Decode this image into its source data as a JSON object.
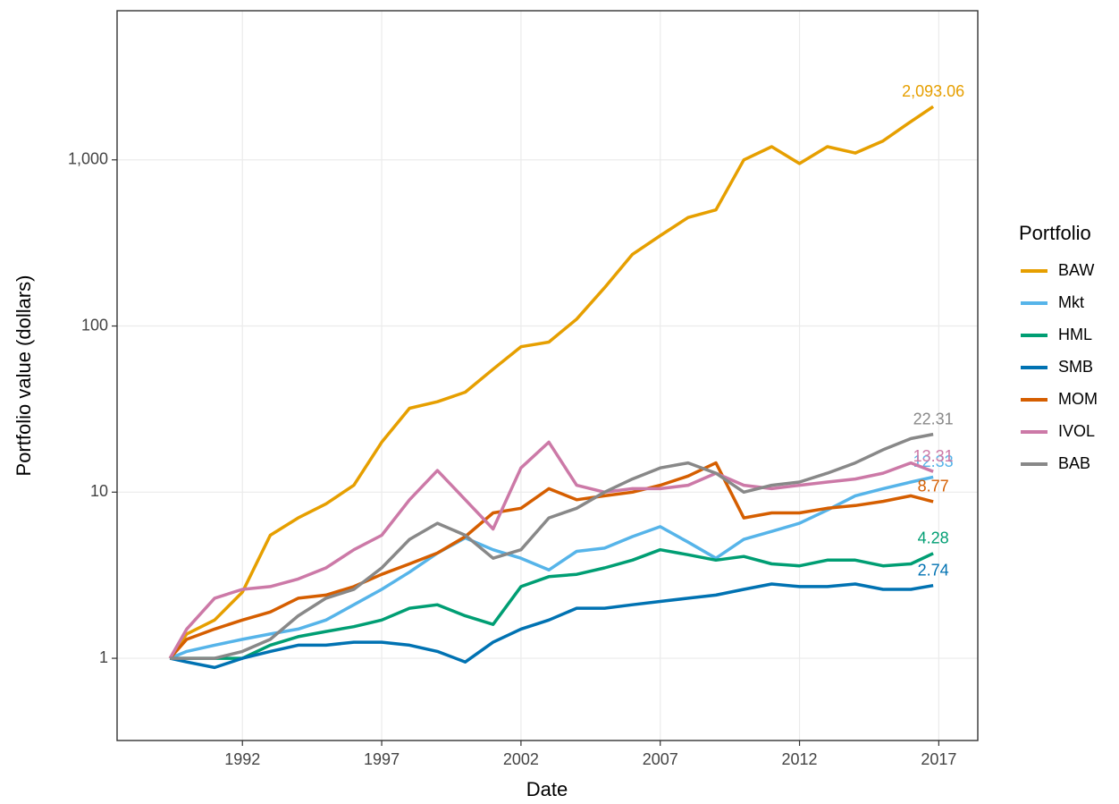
{
  "chart_data": {
    "type": "line",
    "log_y": true,
    "grid": true,
    "x_label": "Date",
    "y_label": "Portfolio value (dollars)",
    "legend_title": "Portfolio",
    "legend_position": "right",
    "xlim": [
      1987.5,
      2018.4
    ],
    "xticks": [
      1992,
      1997,
      2002,
      2007,
      2012,
      2017
    ],
    "ylim": [
      0.32,
      7900
    ],
    "yticks": [
      1,
      10,
      100,
      {
        "value": 1000,
        "label": "1,000"
      }
    ],
    "x": [
      1989.4,
      1990,
      1991,
      1992,
      1993,
      1994,
      1995,
      1996,
      1997,
      1998,
      1999,
      2000,
      2001,
      2002,
      2003,
      2004,
      2005,
      2006,
      2007,
      2008,
      2009,
      2010,
      2011,
      2012,
      2013,
      2014,
      2015,
      2016,
      2016.8
    ],
    "series": [
      {
        "name": "BAW",
        "color": "#E69F00",
        "values": [
          1,
          1.4,
          1.7,
          2.5,
          5.5,
          7,
          8.5,
          11,
          20,
          32,
          35,
          40,
          55,
          75,
          80,
          110,
          170,
          270,
          350,
          450,
          500,
          1000,
          1200,
          950,
          1200,
          1100,
          1300,
          1700,
          2093.06
        ],
        "value_labels": [
          null,
          null,
          null,
          null,
          null,
          null,
          null,
          null,
          null,
          null,
          null,
          null,
          null,
          null,
          null,
          null,
          null,
          null,
          null,
          null,
          null,
          null,
          null,
          null,
          null,
          null,
          null,
          null,
          "2,093.06"
        ]
      },
      {
        "name": "Mkt",
        "color": "#56B4E9",
        "values": [
          1,
          1.1,
          1.2,
          1.3,
          1.4,
          1.5,
          1.7,
          2.1,
          2.6,
          3.3,
          4.3,
          5.3,
          4.5,
          4.0,
          3.4,
          4.4,
          4.6,
          5.4,
          6.2,
          5.0,
          4.0,
          5.2,
          5.8,
          6.5,
          7.8,
          9.5,
          10.5,
          11.5,
          12.33
        ],
        "value_labels": [
          null,
          null,
          null,
          null,
          null,
          null,
          null,
          null,
          null,
          null,
          null,
          null,
          null,
          null,
          null,
          null,
          null,
          null,
          null,
          null,
          null,
          null,
          null,
          null,
          null,
          null,
          null,
          null,
          "12.33"
        ]
      },
      {
        "name": "HML",
        "color": "#009E73",
        "values": [
          1,
          1.0,
          1.0,
          1.0,
          1.2,
          1.35,
          1.45,
          1.55,
          1.7,
          2.0,
          2.1,
          1.8,
          1.6,
          2.7,
          3.1,
          3.2,
          3.5,
          3.9,
          4.5,
          4.2,
          3.9,
          4.1,
          3.7,
          3.6,
          3.9,
          3.9,
          3.6,
          3.7,
          4.28
        ],
        "value_labels": [
          null,
          null,
          null,
          null,
          null,
          null,
          null,
          null,
          null,
          null,
          null,
          null,
          null,
          null,
          null,
          null,
          null,
          null,
          null,
          null,
          null,
          null,
          null,
          null,
          null,
          null,
          null,
          null,
          "4.28"
        ]
      },
      {
        "name": "SMB",
        "color": "#0072B2",
        "values": [
          1,
          0.95,
          0.88,
          1.0,
          1.1,
          1.2,
          1.2,
          1.25,
          1.25,
          1.2,
          1.1,
          0.95,
          1.25,
          1.5,
          1.7,
          2.0,
          2.0,
          2.1,
          2.2,
          2.3,
          2.4,
          2.6,
          2.8,
          2.7,
          2.7,
          2.8,
          2.6,
          2.6,
          2.74
        ],
        "value_labels": [
          null,
          null,
          null,
          null,
          null,
          null,
          null,
          null,
          null,
          null,
          null,
          null,
          null,
          null,
          null,
          null,
          null,
          null,
          null,
          null,
          null,
          null,
          null,
          null,
          null,
          null,
          null,
          null,
          "2.74"
        ]
      },
      {
        "name": "MOM",
        "color": "#D55E00",
        "values": [
          1,
          1.3,
          1.5,
          1.7,
          1.9,
          2.3,
          2.4,
          2.7,
          3.2,
          3.7,
          4.3,
          5.4,
          7.5,
          8.0,
          10.5,
          9.0,
          9.5,
          10.0,
          11.0,
          12.5,
          15.0,
          7.0,
          7.5,
          7.5,
          8.0,
          8.3,
          8.8,
          9.5,
          8.77
        ],
        "value_labels": [
          null,
          null,
          null,
          null,
          null,
          null,
          null,
          null,
          null,
          null,
          null,
          null,
          null,
          null,
          null,
          null,
          null,
          null,
          null,
          null,
          null,
          null,
          null,
          null,
          null,
          null,
          null,
          null,
          "8.77"
        ]
      },
      {
        "name": "IVOL",
        "color": "#CC79A7",
        "values": [
          1,
          1.5,
          2.3,
          2.6,
          2.7,
          3.0,
          3.5,
          4.5,
          5.5,
          9.0,
          13.5,
          9.0,
          6.0,
          14.0,
          20.0,
          11.0,
          10.0,
          10.5,
          10.5,
          11.0,
          13.0,
          11.0,
          10.5,
          11.0,
          11.5,
          12.0,
          13.0,
          15.0,
          13.31
        ],
        "value_labels": [
          null,
          null,
          null,
          null,
          null,
          null,
          null,
          null,
          null,
          null,
          null,
          null,
          null,
          null,
          null,
          null,
          null,
          null,
          null,
          null,
          null,
          null,
          null,
          null,
          null,
          null,
          null,
          null,
          "13.31"
        ]
      },
      {
        "name": "BAB",
        "color": "#888888",
        "values": [
          1,
          1.0,
          1.0,
          1.1,
          1.3,
          1.8,
          2.3,
          2.6,
          3.5,
          5.2,
          6.5,
          5.5,
          4.0,
          4.5,
          7.0,
          8.0,
          10.0,
          12.0,
          14.0,
          15.0,
          13.0,
          10.0,
          11.0,
          11.5,
          13.0,
          15.0,
          18.0,
          21.0,
          22.31
        ],
        "value_labels": [
          null,
          null,
          null,
          null,
          null,
          null,
          null,
          null,
          null,
          null,
          null,
          null,
          null,
          null,
          null,
          null,
          null,
          null,
          null,
          null,
          null,
          null,
          null,
          null,
          null,
          null,
          null,
          null,
          "22.31"
        ]
      }
    ]
  }
}
